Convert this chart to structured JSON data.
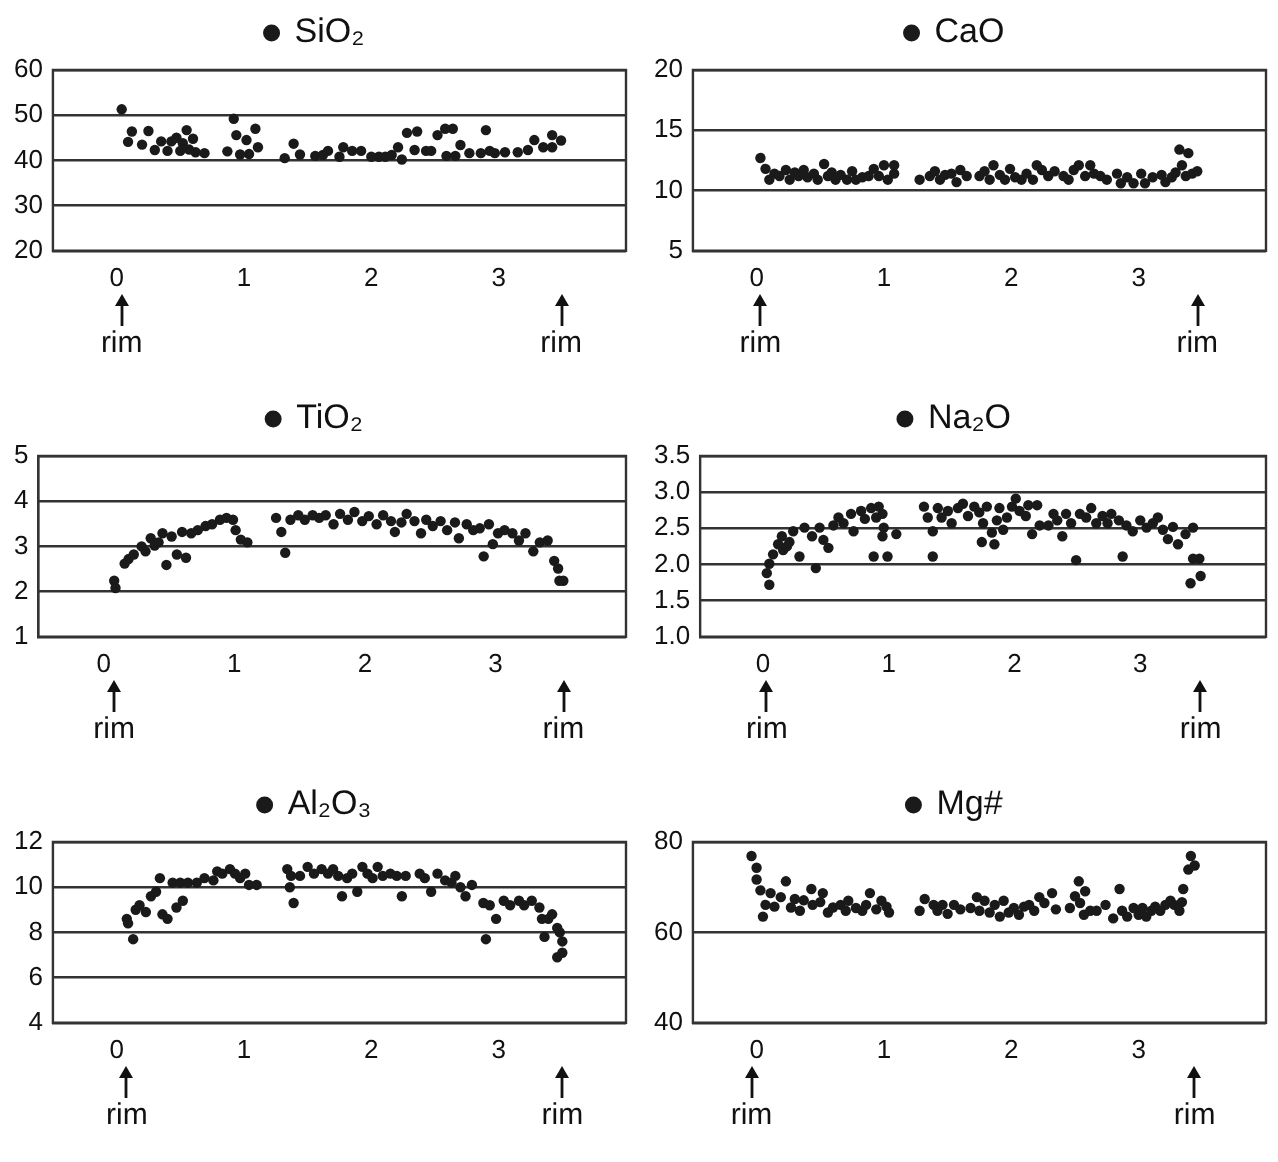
{
  "chart_data": [
    {
      "type": "scatter",
      "legend": "top",
      "grid": "y",
      "marker": "circle",
      "xlim": [
        -0.5,
        4
      ],
      "xticks": [
        0,
        1,
        2,
        3
      ],
      "ylim": [
        20,
        60
      ],
      "yticks": [
        20,
        30,
        40,
        50,
        60
      ],
      "annotations": [
        "rim",
        "rim"
      ],
      "series": [
        {
          "name": "SiO₂",
          "color": "#1a1a1a",
          "x": [
            0.04,
            0.09,
            0.12,
            0.2,
            0.25,
            0.3,
            0.35,
            0.4,
            0.43,
            0.47,
            0.5,
            0.52,
            0.55,
            0.57,
            0.6,
            0.62,
            0.69,
            0.87,
            0.92,
            0.94,
            0.97,
            1.02,
            1.04,
            1.09,
            1.11,
            1.32,
            1.39,
            1.44,
            1.56,
            1.62,
            1.66,
            1.75,
            1.78,
            1.85,
            1.92,
            2.0,
            2.06,
            2.11,
            2.16,
            2.21,
            2.24,
            2.28,
            2.36,
            2.34,
            2.43,
            2.47,
            2.52,
            2.58,
            2.64,
            2.59,
            2.66,
            2.7,
            2.77,
            2.86,
            2.9,
            2.93,
            2.97,
            3.05,
            3.15,
            3.23,
            3.28,
            3.35,
            3.42,
            3.42,
            3.49
          ],
          "values": [
            51.3,
            44.1,
            46.4,
            43.5,
            46.5,
            42.3,
            44.2,
            42.1,
            44.2,
            45.0,
            42.1,
            43.8,
            46.7,
            42.4,
            44.8,
            41.8,
            41.6,
            42.0,
            49.2,
            45.6,
            41.3,
            44.5,
            41.4,
            47.0,
            42.9,
            40.5,
            43.7,
            41.3,
            41.0,
            41.2,
            42.1,
            40.8,
            42.9,
            42.1,
            42.1,
            40.8,
            40.8,
            40.8,
            41.2,
            42.9,
            40.2,
            46.1,
            46.4,
            42.3,
            42.1,
            42.1,
            45.6,
            47.0,
            47.0,
            41.0,
            41.0,
            43.4,
            41.6,
            41.6,
            46.7,
            42.1,
            41.6,
            41.8,
            41.8,
            42.3,
            44.5,
            42.9,
            42.9,
            45.6,
            44.4
          ]
        }
      ]
    },
    {
      "type": "scatter",
      "legend": "top",
      "grid": "y",
      "marker": "circle",
      "xlim": [
        -0.5,
        4
      ],
      "xticks": [
        0,
        1,
        2,
        3
      ],
      "ylim": [
        5,
        20
      ],
      "yticks": [
        5,
        10,
        15,
        20
      ],
      "annotations": [
        "rim",
        "rim"
      ],
      "series": [
        {
          "name": "CaO",
          "color": "#1a1a1a",
          "x": [
            0.03,
            0.07,
            0.1,
            0.14,
            0.18,
            0.23,
            0.26,
            0.3,
            0.33,
            0.37,
            0.4,
            0.45,
            0.48,
            0.53,
            0.56,
            0.59,
            0.62,
            0.66,
            0.71,
            0.75,
            0.78,
            0.83,
            0.88,
            0.92,
            0.96,
            1.0,
            1.03,
            1.08,
            1.08,
            1.28,
            1.36,
            1.4,
            1.44,
            1.48,
            1.53,
            1.57,
            1.6,
            1.65,
            1.75,
            1.79,
            1.83,
            1.86,
            1.91,
            1.95,
            1.99,
            2.03,
            2.08,
            2.12,
            2.17,
            2.2,
            2.24,
            2.29,
            2.34,
            2.41,
            2.45,
            2.49,
            2.53,
            2.58,
            2.62,
            2.65,
            2.7,
            2.75,
            2.83,
            2.86,
            2.91,
            2.96,
            3.02,
            3.05,
            3.11,
            3.18,
            3.21,
            3.26,
            3.29,
            3.32,
            3.34,
            3.37,
            3.39,
            3.42,
            3.46
          ],
          "values": [
            12.7,
            11.8,
            10.9,
            11.4,
            11.2,
            11.7,
            10.9,
            11.5,
            11.2,
            11.7,
            11.1,
            11.4,
            10.9,
            12.2,
            11.2,
            11.5,
            10.9,
            11.3,
            10.9,
            11.6,
            10.9,
            11.1,
            11.2,
            11.8,
            11.2,
            12.1,
            10.9,
            12.1,
            11.4,
            10.9,
            11.2,
            11.6,
            10.9,
            11.3,
            11.4,
            10.7,
            11.7,
            11.2,
            11.2,
            11.6,
            10.9,
            12.1,
            11.3,
            10.9,
            11.8,
            11.1,
            10.9,
            11.4,
            10.9,
            12.1,
            11.7,
            11.2,
            11.6,
            11.2,
            10.9,
            11.7,
            12.1,
            11.2,
            12.1,
            11.4,
            11.2,
            10.9,
            11.4,
            10.6,
            11.1,
            10.6,
            11.4,
            10.6,
            11.1,
            11.3,
            10.7,
            11.1,
            11.5,
            13.4,
            12.1,
            11.2,
            13.1,
            11.4,
            11.6
          ]
        }
      ]
    },
    {
      "type": "scatter",
      "legend": "top",
      "grid": "y",
      "marker": "circle",
      "xlim": [
        -0.5,
        4
      ],
      "xticks": [
        0,
        1,
        2,
        3
      ],
      "ylim": [
        1,
        5
      ],
      "yticks": [
        1,
        2,
        3,
        4,
        5
      ],
      "annotations": [
        "rim",
        "rim"
      ],
      "series": [
        {
          "name": "TiO₂",
          "color": "#1a1a1a",
          "x": [
            0.08,
            0.09,
            0.16,
            0.19,
            0.23,
            0.29,
            0.32,
            0.36,
            0.39,
            0.42,
            0.45,
            0.48,
            0.52,
            0.56,
            0.6,
            0.63,
            0.67,
            0.72,
            0.78,
            0.83,
            0.89,
            0.94,
            0.99,
            1.01,
            1.05,
            1.1,
            1.32,
            1.36,
            1.39,
            1.43,
            1.49,
            1.54,
            1.6,
            1.65,
            1.7,
            1.76,
            1.81,
            1.87,
            1.92,
            1.98,
            2.03,
            2.09,
            2.14,
            2.2,
            2.23,
            2.28,
            2.32,
            2.38,
            2.43,
            2.47,
            2.52,
            2.58,
            2.63,
            2.69,
            2.72,
            2.78,
            2.83,
            2.88,
            2.91,
            2.95,
            2.98,
            3.02,
            3.07,
            3.13,
            3.18,
            3.23,
            3.29,
            3.34,
            3.4,
            3.45,
            3.48,
            3.49,
            3.52
          ],
          "values": [
            2.24,
            2.08,
            2.62,
            2.72,
            2.82,
            3.0,
            2.89,
            3.18,
            3.02,
            3.09,
            3.29,
            2.59,
            3.22,
            2.82,
            3.32,
            2.75,
            3.29,
            3.36,
            3.45,
            3.49,
            3.59,
            3.63,
            3.59,
            3.36,
            3.15,
            3.09,
            3.63,
            3.32,
            2.86,
            3.59,
            3.69,
            3.59,
            3.69,
            3.63,
            3.69,
            3.49,
            3.72,
            3.59,
            3.76,
            3.56,
            3.67,
            3.49,
            3.69,
            3.56,
            3.32,
            3.53,
            3.72,
            3.56,
            3.29,
            3.59,
            3.45,
            3.56,
            3.36,
            3.53,
            3.18,
            3.49,
            3.36,
            3.4,
            2.78,
            3.49,
            3.05,
            3.29,
            3.36,
            3.29,
            3.13,
            3.29,
            2.89,
            3.09,
            3.13,
            2.68,
            2.51,
            2.24,
            2.24
          ]
        }
      ]
    },
    {
      "type": "scatter",
      "legend": "top",
      "grid": "y",
      "marker": "circle",
      "xlim": [
        -0.5,
        4
      ],
      "xticks": [
        0,
        1,
        2,
        3
      ],
      "ylim": [
        1,
        3.5
      ],
      "yticks": [
        {
          "value": 1,
          "label": "1.0"
        },
        {
          "value": 1.5,
          "label": "1.5"
        },
        {
          "value": 2,
          "label": "2.0"
        },
        {
          "value": 2.5,
          "label": "2.5"
        },
        {
          "value": 3,
          "label": "3.0"
        },
        {
          "value": 3.5,
          "label": "3.5"
        }
      ],
      "annotations": [
        "rim",
        "rim"
      ],
      "series": [
        {
          "name": "Na₂O",
          "color": "#1a1a1a",
          "x": [
            0.03,
            0.05,
            0.05,
            0.08,
            0.12,
            0.15,
            0.16,
            0.19,
            0.21,
            0.24,
            0.29,
            0.33,
            0.39,
            0.42,
            0.45,
            0.48,
            0.52,
            0.56,
            0.6,
            0.64,
            0.7,
            0.72,
            0.78,
            0.81,
            0.86,
            0.9,
            0.88,
            0.92,
            0.95,
            0.96,
            0.95,
            0.99,
            1.06,
            1.28,
            1.31,
            1.35,
            1.35,
            1.39,
            1.42,
            1.47,
            1.5,
            1.55,
            1.59,
            1.63,
            1.68,
            1.72,
            1.74,
            1.75,
            1.78,
            1.82,
            1.84,
            1.86,
            1.88,
            1.91,
            1.94,
            1.98,
            2.01,
            2.04,
            2.09,
            2.11,
            2.14,
            2.18,
            2.2,
            2.27,
            2.31,
            2.34,
            2.38,
            2.41,
            2.45,
            2.49,
            2.52,
            2.57,
            2.61,
            2.65,
            2.7,
            2.74,
            2.77,
            2.83,
            2.86,
            2.89,
            2.94,
            3.0,
            3.05,
            3.1,
            3.14,
            3.18,
            3.22,
            3.26,
            3.3,
            3.36,
            3.42,
            3.42,
            3.4,
            3.47,
            3.48
          ],
          "values": [
            1.88,
            2.01,
            1.72,
            2.14,
            2.28,
            2.39,
            2.2,
            2.25,
            2.31,
            2.46,
            2.11,
            2.51,
            2.39,
            1.95,
            2.51,
            2.34,
            2.23,
            2.54,
            2.65,
            2.57,
            2.7,
            2.46,
            2.74,
            2.63,
            2.78,
            2.65,
            2.11,
            2.8,
            2.7,
            2.51,
            2.39,
            2.11,
            2.42,
            2.8,
            2.65,
            2.46,
            2.11,
            2.78,
            2.65,
            2.74,
            2.57,
            2.78,
            2.84,
            2.67,
            2.8,
            2.72,
            2.31,
            2.57,
            2.8,
            2.44,
            2.28,
            2.61,
            2.78,
            2.48,
            2.65,
            2.8,
            2.91,
            2.74,
            2.67,
            2.82,
            2.42,
            2.82,
            2.54,
            2.54,
            2.7,
            2.61,
            2.39,
            2.7,
            2.57,
            2.06,
            2.7,
            2.65,
            2.78,
            2.57,
            2.67,
            2.57,
            2.7,
            2.61,
            2.11,
            2.54,
            2.46,
            2.61,
            2.51,
            2.57,
            2.65,
            2.48,
            2.35,
            2.52,
            2.28,
            2.42,
            2.51,
            2.08,
            1.74,
            2.08,
            1.84
          ]
        }
      ]
    },
    {
      "type": "scatter",
      "legend": "top",
      "grid": "y",
      "marker": "circle",
      "xlim": [
        -0.5,
        4
      ],
      "xticks": [
        0,
        1,
        2,
        3
      ],
      "ylim": [
        4,
        12
      ],
      "yticks": [
        4,
        6,
        8,
        10,
        12
      ],
      "annotations": [
        "rim",
        "rim"
      ],
      "series": [
        {
          "name": "Al₂O₃",
          "color": "#1a1a1a",
          "x": [
            0.08,
            0.09,
            0.13,
            0.15,
            0.18,
            0.23,
            0.27,
            0.31,
            0.34,
            0.36,
            0.4,
            0.44,
            0.47,
            0.5,
            0.52,
            0.56,
            0.63,
            0.69,
            0.76,
            0.79,
            0.83,
            0.89,
            0.93,
            0.97,
            1.01,
            1.04,
            1.1,
            1.34,
            1.36,
            1.39,
            1.37,
            1.44,
            1.5,
            1.55,
            1.61,
            1.66,
            1.7,
            1.74,
            1.77,
            1.81,
            1.85,
            1.89,
            1.93,
            1.97,
            2.01,
            2.05,
            2.09,
            2.15,
            2.2,
            2.24,
            2.27,
            2.38,
            2.42,
            2.47,
            2.52,
            2.58,
            2.63,
            2.66,
            2.7,
            2.74,
            2.79,
            2.88,
            2.9,
            2.93,
            2.98,
            3.04,
            3.09,
            3.16,
            3.2,
            3.26,
            3.32,
            3.34,
            3.36,
            3.39,
            3.42,
            3.46,
            3.48,
            3.46,
            3.5,
            3.5
          ],
          "values": [
            8.6,
            8.4,
            7.7,
            9.0,
            9.2,
            8.9,
            9.6,
            9.8,
            10.4,
            8.8,
            8.6,
            10.2,
            9.1,
            10.2,
            9.4,
            10.2,
            10.2,
            10.4,
            10.3,
            10.7,
            10.6,
            10.8,
            10.6,
            10.4,
            10.6,
            10.1,
            10.1,
            10.8,
            10.0,
            9.3,
            10.5,
            10.5,
            10.9,
            10.6,
            10.8,
            10.6,
            10.8,
            10.5,
            9.6,
            10.4,
            10.6,
            9.8,
            10.9,
            10.6,
            10.4,
            10.9,
            10.5,
            10.6,
            10.5,
            9.6,
            10.5,
            10.6,
            10.4,
            9.8,
            10.6,
            10.3,
            10.2,
            10.5,
            10.0,
            9.6,
            10.1,
            9.3,
            7.7,
            9.2,
            8.6,
            9.4,
            9.2,
            9.4,
            9.2,
            9.4,
            9.1,
            8.6,
            7.8,
            8.6,
            8.8,
            8.2,
            8.0,
            6.9,
            7.1,
            7.6
          ]
        }
      ]
    },
    {
      "type": "scatter",
      "legend": "top",
      "grid": "y",
      "marker": "circle",
      "xlim": [
        -0.5,
        4
      ],
      "xticks": [
        0,
        1,
        2,
        3
      ],
      "ylim": [
        40,
        80
      ],
      "yticks": [
        40,
        60,
        80
      ],
      "annotations": [
        "rim",
        "rim"
      ],
      "series": [
        {
          "name": "Mg#",
          "color": "#1a1a1a",
          "x": [
            -0.04,
            0,
            0,
            0.03,
            0.05,
            0.07,
            0.11,
            0.14,
            0.19,
            0.23,
            0.27,
            0.3,
            0.34,
            0.37,
            0.43,
            0.44,
            0.5,
            0.52,
            0.56,
            0.6,
            0.66,
            0.7,
            0.72,
            0.78,
            0.83,
            0.86,
            0.89,
            0.94,
            0.98,
            1.02,
            1.04,
            1.28,
            1.32,
            1.39,
            1.42,
            1.46,
            1.5,
            1.55,
            1.6,
            1.68,
            1.73,
            1.75,
            1.79,
            1.83,
            1.87,
            1.91,
            1.94,
            1.98,
            2.02,
            2.06,
            2.1,
            2.14,
            2.18,
            2.22,
            2.26,
            2.32,
            2.35,
            2.46,
            2.5,
            2.53,
            2.54,
            2.57,
            2.58,
            2.62,
            2.67,
            2.74,
            2.8,
            2.85,
            2.87,
            2.91,
            2.96,
            3.0,
            3.03,
            3.06,
            3.1,
            3.13,
            3.17,
            3.21,
            3.25,
            3.28,
            3.32,
            3.34,
            3.35,
            3.39,
            3.41,
            3.44
          ],
          "values": [
            76.9,
            74.3,
            71.7,
            69.3,
            63.5,
            66.1,
            68.7,
            65.7,
            67.8,
            71.3,
            65.5,
            67.4,
            64.8,
            67.1,
            69.6,
            66.1,
            66.7,
            68.7,
            64.4,
            65.5,
            66.1,
            64.8,
            67.0,
            65.4,
            64.8,
            66.1,
            68.7,
            65.1,
            67.0,
            65.7,
            64.4,
            64.8,
            67.4,
            66.1,
            64.8,
            66.1,
            64.1,
            66.1,
            65.1,
            65.4,
            67.8,
            64.8,
            67.0,
            64.4,
            66.1,
            63.5,
            67.0,
            64.4,
            65.4,
            63.9,
            65.7,
            66.1,
            64.8,
            67.8,
            66.5,
            68.7,
            65.1,
            65.4,
            68.0,
            71.3,
            66.5,
            63.9,
            69.1,
            64.8,
            64.8,
            66.1,
            63.1,
            69.6,
            64.8,
            63.5,
            65.4,
            63.9,
            65.4,
            63.5,
            64.8,
            65.7,
            64.8,
            66.1,
            67.0,
            66.1,
            64.8,
            66.7,
            69.6,
            73.9,
            76.9,
            74.8
          ]
        }
      ]
    }
  ]
}
